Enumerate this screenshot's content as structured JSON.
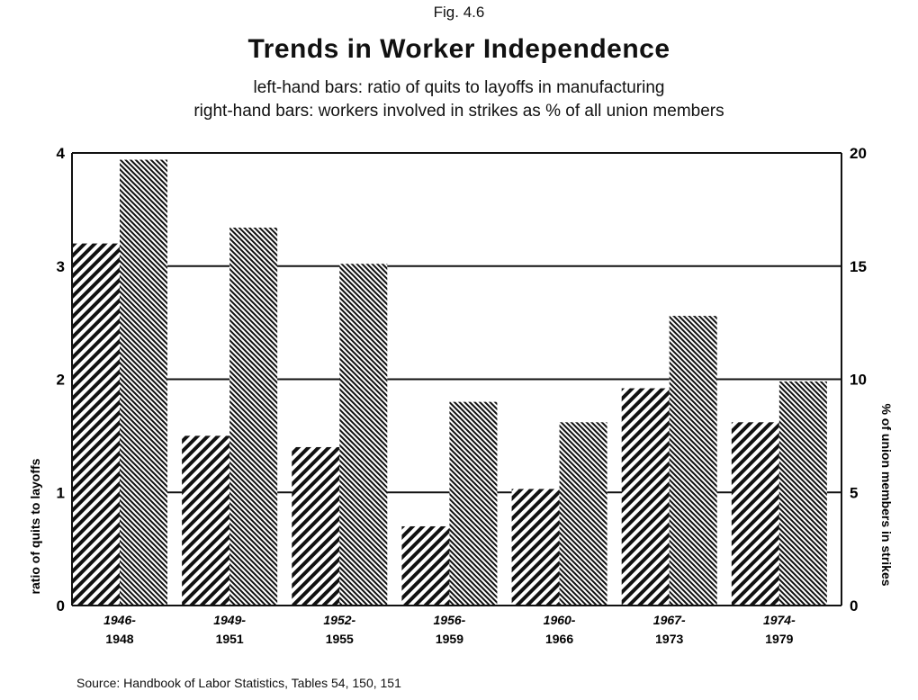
{
  "header": {
    "fig_label": "Fig. 4.6",
    "title": "Trends in Worker Independence",
    "subtitle_1": "left-hand bars: ratio of quits to layoffs in manufacturing",
    "subtitle_2": "right-hand bars: workers involved in strikes as % of all union members"
  },
  "source": "Source: Handbook of Labor Statistics, Tables 54, 150, 151",
  "chart_data": {
    "type": "bar",
    "categories": [
      [
        "1946-",
        "1948"
      ],
      [
        "1949-",
        "1951"
      ],
      [
        "1952-",
        "1955"
      ],
      [
        "1956-",
        "1959"
      ],
      [
        "1960-",
        "1966"
      ],
      [
        "1967-",
        "1973"
      ],
      [
        "1974-",
        "1979"
      ]
    ],
    "series": [
      {
        "axis": "left",
        "pattern": "dense-forward-diagonal",
        "values": [
          3.2,
          1.5,
          1.4,
          0.7,
          1.03,
          1.92,
          1.62
        ]
      },
      {
        "axis": "right",
        "pattern": "fine-backward-diagonal",
        "values": [
          19.7,
          16.7,
          15.1,
          9.0,
          8.1,
          12.8,
          9.9
        ]
      }
    ],
    "ylabel": "ratio of quits to layoffs",
    "ylabel_right": "% of union members in strikes",
    "ylim": [
      0,
      4
    ],
    "ylim_right": [
      0,
      20
    ],
    "yticks": [
      "0",
      "1",
      "2",
      "3",
      "4"
    ],
    "yticks_right": [
      "0",
      "5",
      "10",
      "15",
      "20"
    ],
    "grid": true,
    "colors": {
      "ink": "#111111",
      "background": "#ffffff"
    }
  }
}
